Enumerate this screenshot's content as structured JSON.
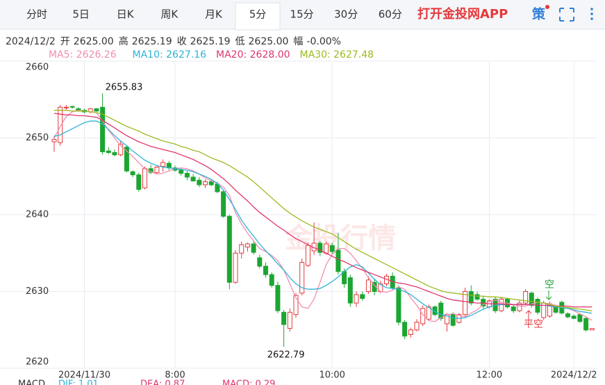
{
  "tabs": [
    "分时",
    "5日",
    "日K",
    "周K",
    "月K",
    "5分",
    "15分",
    "30分",
    "60分"
  ],
  "active_tab": 5,
  "app_link": "打开金投网APP",
  "icon_label": "策",
  "info": {
    "date": "2024/12/2",
    "fields": [
      {
        "label": "开",
        "value": "2625.00"
      },
      {
        "label": "高",
        "value": "2625.19"
      },
      {
        "label": "收",
        "value": "2625.19"
      },
      {
        "label": "低",
        "value": "2625.00"
      },
      {
        "label": "幅",
        "value": "-0.00%"
      }
    ]
  },
  "macd": [
    {
      "text": "MACD",
      "color": "#333333"
    },
    {
      "text": "DIF: 1.01",
      "color": "#2cb3d6"
    },
    {
      "text": "DEA: 0.87",
      "color": "#e0366b"
    },
    {
      "text": "MACD: 0.29",
      "color": "#e0366b"
    }
  ],
  "chart_data": {
    "type": "candlestick",
    "watermark": "金投行情",
    "up_color": "#e4393c",
    "down_color": "#1ba631",
    "ylim": [
      2620,
      2660
    ],
    "yticks": [
      2620,
      2630,
      2640,
      2650,
      2660
    ],
    "grid": true,
    "xticks": [
      {
        "value": 5,
        "label": "2024/11/30"
      },
      {
        "value": 20,
        "label": "8:00"
      },
      {
        "value": 46,
        "label": "10:00"
      },
      {
        "value": 72,
        "label": "12:00"
      },
      {
        "value": 86,
        "label": "2024/12/2"
      }
    ],
    "high_label": "2655.83",
    "low_label": "2622.79",
    "signals": [
      {
        "text": "空",
        "color": "#1ba631"
      },
      {
        "text": "平空",
        "color": "#e4393c"
      }
    ],
    "ohlc": [
      [
        2649.5,
        2650.3,
        2648.2,
        2649.8
      ],
      [
        2649.4,
        2654.3,
        2649,
        2654
      ],
      [
        2654,
        2654.3,
        2653.6,
        2654
      ],
      [
        2654.1,
        2654.2,
        2653.8,
        2654
      ],
      [
        2653.8,
        2654,
        2653.5,
        2653.6
      ],
      [
        2653.6,
        2653.8,
        2653.2,
        2653.4
      ],
      [
        2653.4,
        2653.9,
        2653.2,
        2653.8
      ],
      [
        2653.8,
        2653.9,
        2653.4,
        2653.5
      ],
      [
        2654,
        2655.83,
        2647.8,
        2648.2
      ],
      [
        2648.3,
        2648.8,
        2647.9,
        2648.1
      ],
      [
        2648.1,
        2648.5,
        2647.6,
        2647.8
      ],
      [
        2647.8,
        2649.6,
        2647.6,
        2649.2
      ],
      [
        2648.8,
        2649,
        2645.5,
        2645.7
      ],
      [
        2645.6,
        2645.8,
        2644.9,
        2645.2
      ],
      [
        2645.2,
        2645.5,
        2643,
        2643.3
      ],
      [
        2643.5,
        2646.3,
        2643.3,
        2646
      ],
      [
        2646,
        2646.5,
        2645.3,
        2645.5
      ],
      [
        2645.5,
        2646.4,
        2645.3,
        2646.2
      ],
      [
        2646.3,
        2647.2,
        2645.6,
        2646.8
      ],
      [
        2646.7,
        2647,
        2645.8,
        2646.1
      ],
      [
        2646.1,
        2646.4,
        2645.6,
        2645.8
      ],
      [
        2645.8,
        2646.1,
        2645.1,
        2645.4
      ],
      [
        2645.4,
        2645.7,
        2644.5,
        2644.9
      ],
      [
        2644.9,
        2645.3,
        2644.3,
        2644.4
      ],
      [
        2644.5,
        2644.9,
        2643.6,
        2643.9
      ],
      [
        2643.9,
        2644.6,
        2643.5,
        2644.3
      ],
      [
        2644.3,
        2644.6,
        2643.7,
        2643.9
      ],
      [
        2644,
        2644.3,
        2642.8,
        2643
      ],
      [
        2643,
        2643.2,
        2639.6,
        2639.8
      ],
      [
        2639.8,
        2640,
        2630.3,
        2631.2
      ],
      [
        2631.2,
        2635.4,
        2631,
        2635
      ],
      [
        2635,
        2636.5,
        2634.3,
        2636.1
      ],
      [
        2635.8,
        2636.4,
        2635.2,
        2636.2
      ],
      [
        2636.2,
        2636.5,
        2634.8,
        2635.1
      ],
      [
        2634.4,
        2634.8,
        2633,
        2633.3
      ],
      [
        2633.3,
        2633.8,
        2631.8,
        2632.2
      ],
      [
        2632.2,
        2632.5,
        2630.5,
        2630.8
      ],
      [
        2630.8,
        2631.3,
        2627.2,
        2627.5
      ],
      [
        2627.3,
        2627.6,
        2622.79,
        2625.7
      ],
      [
        2625.2,
        2627.8,
        2624.8,
        2627.3
      ],
      [
        2627,
        2629.8,
        2626.6,
        2629.5
      ],
      [
        2629.8,
        2634.3,
        2629.5,
        2633.8
      ],
      [
        2633.4,
        2636.4,
        2633.2,
        2636
      ],
      [
        2635.3,
        2639,
        2634.8,
        2636.3
      ],
      [
        2636.3,
        2636.6,
        2634.6,
        2635.1
      ],
      [
        2635,
        2636.5,
        2634.8,
        2636.2
      ],
      [
        2636,
        2636.3,
        2634.8,
        2635.2
      ],
      [
        2635.4,
        2637.6,
        2632.2,
        2632.6
      ],
      [
        2632.6,
        2633,
        2630.5,
        2631
      ],
      [
        2631.8,
        2632.2,
        2628,
        2628.5
      ],
      [
        2628.5,
        2630,
        2628,
        2629.6
      ],
      [
        2629.6,
        2630,
        2628.8,
        2629.1
      ],
      [
        2630,
        2632,
        2629.7,
        2631.5
      ],
      [
        2631.2,
        2631.6,
        2629.5,
        2630
      ],
      [
        2630,
        2631.4,
        2629.8,
        2631
      ],
      [
        2631,
        2632.3,
        2630.7,
        2632
      ],
      [
        2632,
        2632.5,
        2630.2,
        2630.5
      ],
      [
        2630.5,
        2630.8,
        2625.6,
        2626
      ],
      [
        2626,
        2626.3,
        2623.8,
        2624.2
      ],
      [
        2624.4,
        2625.3,
        2624,
        2625
      ],
      [
        2625,
        2626.4,
        2624.8,
        2626
      ],
      [
        2625.8,
        2628.2,
        2625.5,
        2627.8
      ],
      [
        2626.4,
        2628.3,
        2626.2,
        2628
      ],
      [
        2628,
        2628.2,
        2626.8,
        2627
      ],
      [
        2628.5,
        2628.8,
        2626.2,
        2626.5
      ],
      [
        2625.8,
        2627.2,
        2624.8,
        2627
      ],
      [
        2627,
        2627.3,
        2625.4,
        2625.6
      ],
      [
        2626,
        2627.2,
        2625.8,
        2627
      ],
      [
        2627,
        2630.5,
        2626.8,
        2630
      ],
      [
        2630,
        2630.8,
        2628.2,
        2628.5
      ],
      [
        2629.6,
        2630,
        2628.8,
        2629
      ],
      [
        2629,
        2629.4,
        2627.8,
        2628.1
      ],
      [
        2628,
        2629,
        2627.8,
        2628.8
      ],
      [
        2629,
        2629.3,
        2627.2,
        2627.5
      ],
      [
        2627.5,
        2629.3,
        2627.3,
        2629
      ],
      [
        2629,
        2629.2,
        2627.8,
        2628
      ],
      [
        2628,
        2628.3,
        2627.2,
        2627.5
      ],
      [
        2627.5,
        2628.8,
        2627.3,
        2628.5
      ],
      [
        2628.5,
        2630.3,
        2628.3,
        2630
      ],
      [
        2629.8,
        2630,
        2627.9,
        2628.2
      ],
      [
        2629,
        2629.2,
        2627,
        2627.3
      ],
      [
        2626.6,
        2628.8,
        2626.3,
        2628.5
      ],
      [
        2626.8,
        2628.7,
        2626.6,
        2628.4
      ],
      [
        2628,
        2628.2,
        2627.1,
        2627.3
      ],
      [
        2628.6,
        2628.8,
        2627,
        2627.2
      ],
      [
        2627.1,
        2627.3,
        2626.5,
        2626.7
      ],
      [
        2626.8,
        2627,
        2626.4,
        2626.5
      ],
      [
        2627,
        2627.2,
        2625.9,
        2626.1
      ],
      [
        2626.5,
        2626.7,
        2624.8,
        2625
      ],
      [
        2625,
        2625.19,
        2625,
        2625.19
      ]
    ],
    "series": [
      {
        "legend": "MA5: 2626.26",
        "color": "#f08db0",
        "values": [
          2650.0,
          2651.5,
          2652.8,
          2653.4,
          2653.6,
          2653.5,
          2653.4,
          2653.3,
          2652.2,
          2651.0,
          2650.0,
          2649.0,
          2648.3,
          2647.6,
          2646.8,
          2646.0,
          2645.6,
          2645.3,
          2645.4,
          2645.7,
          2646.0,
          2646.1,
          2646.0,
          2645.7,
          2645.3,
          2644.8,
          2644.4,
          2644.1,
          2643.6,
          2642.5,
          2640.3,
          2638.8,
          2637.6,
          2636.6,
          2635.6,
          2635.2,
          2634.7,
          2634.0,
          2632.8,
          2631.0,
          2629.2,
          2628.0,
          2627.8,
          2629.0,
          2631.2,
          2633.5,
          2634.8,
          2635.6,
          2635.6,
          2635.0,
          2634.0,
          2633.0,
          2631.8,
          2630.8,
          2630.0,
          2629.9,
          2630.2,
          2630.6,
          2630.3,
          2629.2,
          2628.2,
          2627.0,
          2626.2,
          2626.1,
          2626.6,
          2627.0,
          2627.1,
          2626.9,
          2626.7,
          2627.2,
          2627.6,
          2628.3,
          2628.7,
          2628.9,
          2628.6,
          2628.5,
          2628.3,
          2628.1,
          2628.1,
          2628.4,
          2628.6,
          2628.5,
          2628.4,
          2628.2,
          2628.0,
          2627.8,
          2627.5,
          2627.1,
          2626.7,
          2626.26
        ]
      },
      {
        "legend": "MA10: 2627.16",
        "color": "#2cb3d6",
        "values": [
          2650.2,
          2650.4,
          2650.8,
          2651.2,
          2651.6,
          2652.0,
          2652.2,
          2652.2,
          2651.8,
          2651.1,
          2650.3,
          2649.6,
          2649.0,
          2648.3,
          2647.7,
          2647.1,
          2646.7,
          2646.4,
          2646.2,
          2646.1,
          2646.0,
          2645.9,
          2645.8,
          2645.6,
          2645.3,
          2645.0,
          2644.6,
          2644.1,
          2643.2,
          2642.0,
          2640.7,
          2639.3,
          2638.2,
          2637.2,
          2636.2,
          2635.3,
          2634.5,
          2633.6,
          2632.8,
          2631.8,
          2631.0,
          2630.5,
          2630.3,
          2630.3,
          2630.4,
          2630.8,
          2631.3,
          2631.9,
          2632.6,
          2633.2,
          2633.5,
          2633.2,
          2632.4,
          2631.6,
          2630.9,
          2630.5,
          2630.4,
          2630.3,
          2630.0,
          2629.6,
          2629.0,
          2628.4,
          2627.9,
          2627.4,
          2627.0,
          2626.8,
          2626.6,
          2626.5,
          2626.6,
          2626.9,
          2627.3,
          2627.7,
          2628.0,
          2628.2,
          2628.3,
          2628.3,
          2628.3,
          2628.3,
          2628.3,
          2628.3,
          2628.2,
          2628.2,
          2628.1,
          2628.0,
          2627.9,
          2627.8,
          2627.6,
          2627.4,
          2627.3,
          2627.16
        ]
      },
      {
        "legend": "MA20: 2628.00",
        "color": "#e0366b",
        "values": [
          2653.2,
          2653.1,
          2653.0,
          2653.0,
          2652.9,
          2652.9,
          2652.8,
          2652.7,
          2652.3,
          2651.8,
          2651.3,
          2650.8,
          2650.3,
          2649.9,
          2649.5,
          2649.2,
          2648.9,
          2648.7,
          2648.5,
          2648.3,
          2648.1,
          2647.8,
          2647.5,
          2647.2,
          2646.8,
          2646.4,
          2645.9,
          2645.3,
          2644.7,
          2644.0,
          2643.2,
          2642.5,
          2641.8,
          2641.0,
          2640.3,
          2639.7,
          2639.1,
          2638.5,
          2638.0,
          2637.4,
          2636.9,
          2636.5,
          2636.1,
          2635.7,
          2635.4,
          2635.0,
          2634.6,
          2634.2,
          2633.9,
          2633.5,
          2633.1,
          2632.8,
          2632.5,
          2632.2,
          2631.9,
          2631.6,
          2631.3,
          2631.1,
          2631.0,
          2630.8,
          2630.6,
          2630.3,
          2630.0,
          2629.7,
          2629.4,
          2629.1,
          2628.9,
          2628.8,
          2628.7,
          2628.6,
          2628.5,
          2628.5,
          2628.4,
          2628.4,
          2628.4,
          2628.3,
          2628.3,
          2628.3,
          2628.3,
          2628.3,
          2628.2,
          2628.2,
          2628.2,
          2628.1,
          2628.1,
          2628.1,
          2628.0,
          2628.0,
          2628.0,
          2628.0
        ]
      },
      {
        "legend": "MA30: 2627.48",
        "color": "#9bbb1f",
        "values": [
          2653.6,
          2653.6,
          2653.6,
          2653.5,
          2653.5,
          2653.5,
          2653.4,
          2653.3,
          2653.1,
          2652.7,
          2652.3,
          2651.9,
          2651.5,
          2651.2,
          2650.9,
          2650.5,
          2650.2,
          2649.9,
          2649.6,
          2649.4,
          2649.2,
          2648.9,
          2648.7,
          2648.4,
          2648.2,
          2647.8,
          2647.4,
          2647.1,
          2646.8,
          2646.4,
          2645.9,
          2645.4,
          2644.9,
          2644.3,
          2643.6,
          2642.9,
          2642.2,
          2641.5,
          2640.8,
          2640.2,
          2639.7,
          2639.2,
          2638.8,
          2638.4,
          2638.1,
          2637.8,
          2637.5,
          2637.0,
          2636.5,
          2636.0,
          2635.5,
          2635.1,
          2634.7,
          2634.3,
          2633.9,
          2633.5,
          2633.1,
          2632.7,
          2632.3,
          2631.9,
          2631.5,
          2631.1,
          2630.7,
          2630.4,
          2630.1,
          2629.9,
          2629.8,
          2629.7,
          2629.6,
          2629.5,
          2629.4,
          2629.4,
          2629.3,
          2629.3,
          2629.2,
          2629.1,
          2629.0,
          2628.9,
          2628.8,
          2628.7,
          2628.6,
          2628.5,
          2628.3,
          2628.1,
          2628.0,
          2627.9,
          2627.8,
          2627.7,
          2627.6,
          2627.48
        ]
      }
    ]
  }
}
